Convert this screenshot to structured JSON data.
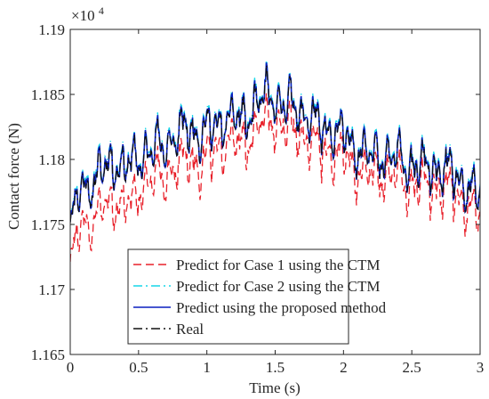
{
  "chart_data": {
    "type": "line",
    "title": "",
    "xlabel": "Time (s)",
    "ylabel": "Contact force (N)",
    "xlim": [
      0,
      3
    ],
    "ylim": [
      11650,
      11900
    ],
    "y_exponent_base": "×10",
    "y_exponent_power": "4",
    "grid": false,
    "legend_position": "bottom-center",
    "x_ticks": [
      0,
      0.5,
      1,
      1.5,
      2,
      2.5,
      3
    ],
    "x_tick_labels": [
      "0",
      "0.5",
      "1",
      "1.5",
      "2",
      "2.5",
      "3"
    ],
    "y_ticks": [
      11650,
      11700,
      11750,
      11800,
      11850,
      11900
    ],
    "y_tick_labels": [
      "1.165",
      "1.17",
      "1.175",
      "1.18",
      "1.185",
      "1.19"
    ],
    "envelope_points": [
      [
        0.0,
        11753
      ],
      [
        0.08,
        11790
      ],
      [
        0.16,
        11788
      ],
      [
        0.24,
        11800
      ],
      [
        0.32,
        11808
      ],
      [
        0.4,
        11800
      ],
      [
        0.5,
        11810
      ],
      [
        0.6,
        11815
      ],
      [
        0.7,
        11820
      ],
      [
        0.78,
        11825
      ],
      [
        0.86,
        11832
      ],
      [
        0.95,
        11828
      ],
      [
        1.05,
        11832
      ],
      [
        1.15,
        11840
      ],
      [
        1.25,
        11838
      ],
      [
        1.35,
        11848
      ],
      [
        1.45,
        11858
      ],
      [
        1.55,
        11850
      ],
      [
        1.65,
        11848
      ],
      [
        1.75,
        11840
      ],
      [
        1.85,
        11830
      ],
      [
        1.95,
        11830
      ],
      [
        2.05,
        11820
      ],
      [
        2.15,
        11815
      ],
      [
        2.25,
        11810
      ],
      [
        2.35,
        11810
      ],
      [
        2.45,
        11805
      ],
      [
        2.55,
        11802
      ],
      [
        2.65,
        11800
      ],
      [
        2.75,
        11800
      ],
      [
        2.85,
        11790
      ],
      [
        2.93,
        11785
      ],
      [
        3.0,
        11778
      ]
    ],
    "series": [
      {
        "name": "Predict for Case 1 using the CTM",
        "color": "#e8202a",
        "style": "dashed",
        "offset_pattern": [
          -28,
          -22,
          -18,
          -16,
          -14,
          -13
        ],
        "wave_amplitude": 22,
        "seed": 7
      },
      {
        "name": "Predict for Case 2 using the CTM",
        "color": "#17d6e8",
        "style": "dashdot",
        "offset_pattern": [
          2,
          2,
          2,
          2,
          2,
          2
        ],
        "wave_amplitude": 22,
        "seed": 11
      },
      {
        "name": "Predict using the proposed method",
        "color": "#0a1fbf",
        "style": "solid",
        "offset_pattern": [
          0,
          0,
          0,
          0,
          0,
          0
        ],
        "wave_amplitude": 22,
        "seed": 11
      },
      {
        "name": "Real",
        "color": "#111111",
        "style": "dashdot",
        "offset_pattern": [
          -1,
          -1,
          -1,
          -1,
          -1,
          -1
        ],
        "wave_amplitude": 21,
        "seed": 11
      }
    ]
  }
}
